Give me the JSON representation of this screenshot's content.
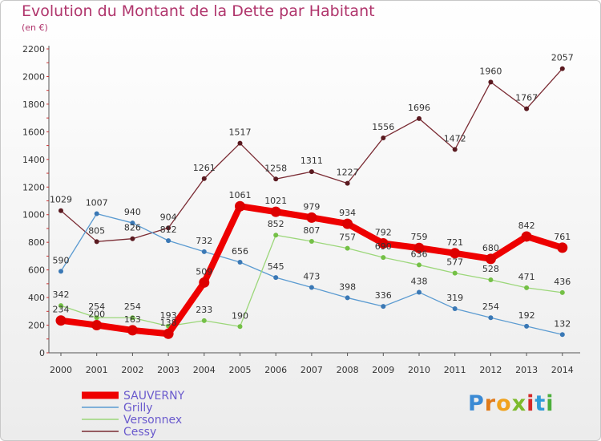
{
  "title": "Evolution du Montant de la Dette par Habitant",
  "subtitle": "(en €)",
  "logo": "Proxiti",
  "chart_data": {
    "type": "line",
    "x": [
      2000,
      2001,
      2002,
      2003,
      2004,
      2005,
      2006,
      2007,
      2008,
      2009,
      2010,
      2011,
      2012,
      2013,
      2014
    ],
    "ylim": [
      0,
      2200
    ],
    "yticks": [
      0,
      200,
      400,
      600,
      800,
      1000,
      1200,
      1400,
      1600,
      1800,
      2000,
      2200
    ],
    "grid": false,
    "legend_position": "bottom-left",
    "series": [
      {
        "name": "Cessy",
        "color": "#7a2b33",
        "marker_color": "#5a1a20",
        "values": [
          1029,
          805,
          826,
          904,
          1261,
          1517,
          1258,
          1311,
          1227,
          1556,
          1696,
          1472,
          1960,
          1767,
          2057
        ]
      },
      {
        "name": "Grilly",
        "color": "#5b9bd1",
        "marker_color": "#3a78b5",
        "values": [
          590,
          1007,
          940,
          812,
          732,
          656,
          545,
          473,
          398,
          336,
          438,
          319,
          254,
          192,
          132
        ]
      },
      {
        "name": "Versonnex",
        "color": "#9cd77a",
        "marker_color": "#74c046",
        "values": [
          342,
          254,
          254,
          193,
          233,
          190,
          852,
          807,
          757,
          690,
          636,
          577,
          528,
          471,
          436
        ]
      },
      {
        "name": "SAUVERNY",
        "color": "#ee0000",
        "marker_color": "#dd0000",
        "values": [
          234,
          200,
          163,
          138,
          509,
          1061,
          1021,
          979,
          934,
          792,
          759,
          721,
          680,
          842,
          761
        ]
      }
    ]
  }
}
